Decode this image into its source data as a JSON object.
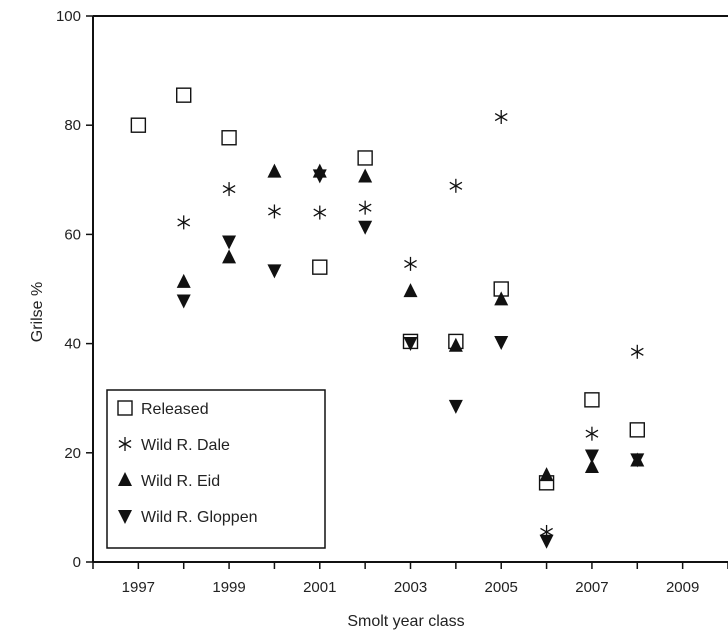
{
  "chart_data": {
    "type": "scatter",
    "xlabel": "Smolt year class",
    "ylabel": "Grilse %",
    "xlim": [
      1996,
      2010
    ],
    "ylim": [
      0,
      100
    ],
    "x_ticks": [
      "1997",
      "1999",
      "2001",
      "2003",
      "2005",
      "2007",
      "2009"
    ],
    "y_ticks": [
      "0",
      "20",
      "40",
      "60",
      "80",
      "100"
    ],
    "grid": false,
    "legend_position": "bottom-left",
    "series": [
      {
        "name": "Released",
        "marker": "open-square",
        "points": [
          [
            1997,
            80
          ],
          [
            1998,
            85.5
          ],
          [
            1999,
            77.7
          ],
          [
            2001,
            54
          ],
          [
            2002,
            74
          ],
          [
            2003,
            40.4
          ],
          [
            2004,
            40.4
          ],
          [
            2005,
            50
          ],
          [
            2006,
            14.5
          ],
          [
            2007,
            29.7
          ],
          [
            2008,
            24.2
          ]
        ]
      },
      {
        "name": "Wild R. Dale",
        "marker": "asterisk",
        "points": [
          [
            1998,
            62.2
          ],
          [
            1999,
            68.3
          ],
          [
            2000,
            64.2
          ],
          [
            2001,
            64
          ],
          [
            2002,
            64.9
          ],
          [
            2003,
            54.6
          ],
          [
            2004,
            68.9
          ],
          [
            2005,
            81.5
          ],
          [
            2006,
            5.5
          ],
          [
            2007,
            23.5
          ],
          [
            2008,
            38.5
          ]
        ]
      },
      {
        "name": "Wild R. Eid",
        "marker": "triangle-up",
        "points": [
          [
            1998,
            51.3
          ],
          [
            1999,
            55.8
          ],
          [
            2000,
            71.5
          ],
          [
            2001,
            71.5
          ],
          [
            2002,
            70.6
          ],
          [
            2003,
            49.6
          ],
          [
            2004,
            39.6
          ],
          [
            2005,
            48.1
          ],
          [
            2006,
            15.9
          ],
          [
            2007,
            17.4
          ],
          [
            2008,
            18.6
          ]
        ]
      },
      {
        "name": "Wild R. Gloppen",
        "marker": "triangle-down",
        "points": [
          [
            1998,
            47.9
          ],
          [
            1999,
            58.7
          ],
          [
            2000,
            53.4
          ],
          [
            2001,
            70.8
          ],
          [
            2002,
            61.4
          ],
          [
            2003,
            40.1
          ],
          [
            2004,
            28.6
          ],
          [
            2005,
            40.3
          ],
          [
            2006,
            3.9
          ],
          [
            2007,
            19.5
          ],
          [
            2008,
            18.8
          ]
        ]
      }
    ]
  }
}
